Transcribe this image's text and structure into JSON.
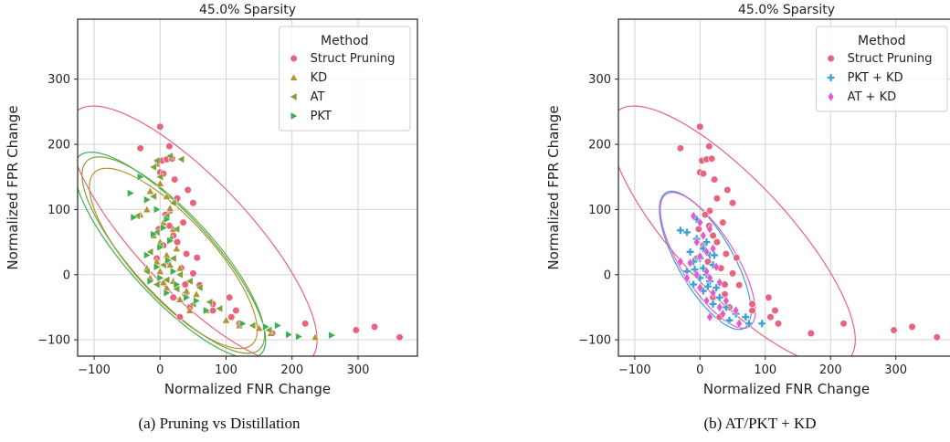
{
  "chart_data": [
    {
      "type": "scatter",
      "title": "45.0% Sparsity",
      "xlabel": "Normalized FNR Change",
      "ylabel": "Normalized FPR Change",
      "xlim": [
        -125,
        390
      ],
      "ylim": [
        -125,
        392
      ],
      "xticks": [
        -100,
        0,
        100,
        200,
        300
      ],
      "yticks": [
        -100,
        0,
        100,
        200,
        300
      ],
      "grid": true,
      "legend_title": "Method",
      "legend_position": "top-right",
      "caption": "(a) Pruning vs Distillation",
      "series": [
        {
          "name": "Struct Pruning",
          "marker": "circle",
          "color": "#e8647c",
          "ellipse": {
            "cx": 50,
            "cy": 60,
            "rx": 260,
            "ry": 85,
            "angle": -47
          },
          "points": [
            [
              0,
              227
            ],
            [
              -30,
              194
            ],
            [
              14,
              197
            ],
            [
              3,
              175
            ],
            [
              10,
              177
            ],
            [
              18,
              178
            ],
            [
              0,
              157
            ],
            [
              5,
              155
            ],
            [
              22,
              146
            ],
            [
              42,
              130
            ],
            [
              26,
              117
            ],
            [
              50,
              110
            ],
            [
              15,
              98
            ],
            [
              8,
              92
            ],
            [
              35,
              80
            ],
            [
              14,
              75
            ],
            [
              -2,
              70
            ],
            [
              20,
              60
            ],
            [
              26,
              50
            ],
            [
              40,
              32
            ],
            [
              56,
              26
            ],
            [
              12,
              20
            ],
            [
              32,
              10
            ],
            [
              50,
              2
            ],
            [
              -5,
              25
            ],
            [
              5,
              45
            ],
            [
              38,
              -15
            ],
            [
              60,
              -16
            ],
            [
              20,
              -35
            ],
            [
              38,
              -30
            ],
            [
              80,
              -45
            ],
            [
              105,
              -35
            ],
            [
              80,
              -55
            ],
            [
              115,
              -55
            ],
            [
              120,
              -75
            ],
            [
              108,
              -65
            ],
            [
              170,
              -90
            ],
            [
              220,
              -75
            ],
            [
              297,
              -85
            ],
            [
              325,
              -80
            ],
            [
              363,
              -96
            ],
            [
              30,
              -65
            ],
            [
              45,
              -50
            ]
          ]
        },
        {
          "name": "KD",
          "marker": "triangle-up",
          "color": "#b59232",
          "ellipse": {
            "cx": 20,
            "cy": 25,
            "rx": 178,
            "ry": 60,
            "angle": -48
          },
          "points": [
            [
              -30,
              92
            ],
            [
              -20,
              100
            ],
            [
              -15,
              128
            ],
            [
              -5,
              170
            ],
            [
              0,
              140
            ],
            [
              10,
              120
            ],
            [
              15,
              102
            ],
            [
              5,
              80
            ],
            [
              20,
              70
            ],
            [
              -10,
              60
            ],
            [
              0,
              50
            ],
            [
              25,
              40
            ],
            [
              10,
              30
            ],
            [
              -5,
              20
            ],
            [
              15,
              15
            ],
            [
              30,
              10
            ],
            [
              0,
              5
            ],
            [
              -15,
              -5
            ],
            [
              20,
              -10
            ],
            [
              10,
              -20
            ],
            [
              40,
              -25
            ],
            [
              30,
              -38
            ],
            [
              55,
              -30
            ],
            [
              5,
              -12
            ],
            [
              -20,
              10
            ],
            [
              45,
              -55
            ],
            [
              70,
              -55
            ],
            [
              100,
              -70
            ],
            [
              120,
              -78
            ],
            [
              150,
              -82
            ],
            [
              168,
              -90
            ],
            [
              235,
              -96
            ]
          ]
        },
        {
          "name": "AT",
          "marker": "triangle-left",
          "color": "#7da13a",
          "ellipse": {
            "cx": 20,
            "cy": 30,
            "rx": 195,
            "ry": 62,
            "angle": -48
          },
          "points": [
            [
              -35,
              90
            ],
            [
              -10,
              165
            ],
            [
              -5,
              175
            ],
            [
              15,
              182
            ],
            [
              32,
              177
            ],
            [
              0,
              150
            ],
            [
              -10,
              120
            ],
            [
              20,
              110
            ],
            [
              10,
              90
            ],
            [
              25,
              70
            ],
            [
              -5,
              65
            ],
            [
              15,
              55
            ],
            [
              0,
              45
            ],
            [
              -15,
              35
            ],
            [
              20,
              25
            ],
            [
              5,
              15
            ],
            [
              -20,
              5
            ],
            [
              30,
              0
            ],
            [
              10,
              -8
            ],
            [
              -5,
              -15
            ],
            [
              25,
              -22
            ],
            [
              45,
              -10
            ],
            [
              50,
              -45
            ],
            [
              75,
              -42
            ],
            [
              90,
              -52
            ],
            [
              140,
              -78
            ],
            [
              165,
              -85
            ],
            [
              60,
              -20
            ]
          ]
        },
        {
          "name": "PKT",
          "marker": "triangle-right",
          "color": "#3cb050",
          "ellipse": {
            "cx": 15,
            "cy": 30,
            "rx": 205,
            "ry": 63,
            "angle": -48
          },
          "points": [
            [
              -40,
              88
            ],
            [
              -45,
              125
            ],
            [
              -30,
              150
            ],
            [
              -20,
              115
            ],
            [
              -5,
              100
            ],
            [
              10,
              85
            ],
            [
              5,
              72
            ],
            [
              -10,
              62
            ],
            [
              15,
              52
            ],
            [
              0,
              42
            ],
            [
              -20,
              30
            ],
            [
              12,
              22
            ],
            [
              -5,
              12
            ],
            [
              20,
              5
            ],
            [
              0,
              -5
            ],
            [
              -15,
              -10
            ],
            [
              25,
              -15
            ],
            [
              10,
              -28
            ],
            [
              40,
              -35
            ],
            [
              55,
              -40
            ],
            [
              70,
              -55
            ],
            [
              125,
              -75
            ],
            [
              160,
              -80
            ],
            [
              178,
              -78
            ],
            [
              195,
              -92
            ],
            [
              210,
              -95
            ],
            [
              260,
              -93
            ]
          ]
        }
      ]
    },
    {
      "type": "scatter",
      "title": "45.0% Sparsity",
      "xlabel": "Normalized FNR Change",
      "ylabel": "Normalized FPR Change",
      "xlim": [
        -125,
        390
      ],
      "ylim": [
        -125,
        392
      ],
      "xticks": [
        -100,
        0,
        100,
        200,
        300
      ],
      "yticks": [
        -100,
        0,
        100,
        200,
        300
      ],
      "grid": true,
      "legend_title": "Method",
      "legend_position": "top-right",
      "caption": "(b) AT/PKT + KD",
      "series": [
        {
          "name": "Struct Pruning",
          "marker": "circle",
          "color": "#e8647c",
          "ellipse": {
            "cx": 50,
            "cy": 60,
            "rx": 260,
            "ry": 85,
            "angle": -47
          },
          "points": [
            [
              0,
              227
            ],
            [
              -30,
              194
            ],
            [
              14,
              197
            ],
            [
              3,
              175
            ],
            [
              10,
              177
            ],
            [
              18,
              178
            ],
            [
              0,
              157
            ],
            [
              5,
              155
            ],
            [
              22,
              146
            ],
            [
              42,
              130
            ],
            [
              26,
              117
            ],
            [
              50,
              110
            ],
            [
              15,
              98
            ],
            [
              8,
              92
            ],
            [
              35,
              80
            ],
            [
              14,
              75
            ],
            [
              -2,
              70
            ],
            [
              20,
              60
            ],
            [
              26,
              50
            ],
            [
              40,
              32
            ],
            [
              56,
              26
            ],
            [
              12,
              20
            ],
            [
              32,
              10
            ],
            [
              50,
              2
            ],
            [
              -5,
              25
            ],
            [
              5,
              45
            ],
            [
              38,
              -15
            ],
            [
              60,
              -16
            ],
            [
              20,
              -35
            ],
            [
              38,
              -30
            ],
            [
              80,
              -45
            ],
            [
              105,
              -35
            ],
            [
              80,
              -55
            ],
            [
              115,
              -55
            ],
            [
              120,
              -75
            ],
            [
              108,
              -65
            ],
            [
              170,
              -90
            ],
            [
              220,
              -75
            ],
            [
              297,
              -85
            ],
            [
              325,
              -80
            ],
            [
              363,
              -96
            ],
            [
              30,
              -65
            ],
            [
              45,
              -50
            ]
          ]
        },
        {
          "name": "PKT + KD",
          "marker": "plus",
          "color": "#3d9fd8",
          "ellipse": {
            "cx": 8,
            "cy": 22,
            "rx": 120,
            "ry": 42,
            "angle": -60
          },
          "points": [
            [
              -30,
              68
            ],
            [
              -20,
              65
            ],
            [
              -5,
              55
            ],
            [
              10,
              50
            ],
            [
              5,
              40
            ],
            [
              -15,
              35
            ],
            [
              15,
              30
            ],
            [
              0,
              25
            ],
            [
              -10,
              20
            ],
            [
              20,
              15
            ],
            [
              5,
              10
            ],
            [
              -20,
              5
            ],
            [
              10,
              0
            ],
            [
              0,
              -5
            ],
            [
              15,
              -10
            ],
            [
              -10,
              -15
            ],
            [
              25,
              -20
            ],
            [
              5,
              -25
            ],
            [
              30,
              -35
            ],
            [
              20,
              -45
            ],
            [
              40,
              -50
            ],
            [
              55,
              -60
            ],
            [
              70,
              -65
            ],
            [
              75,
              -75
            ],
            [
              95,
              -75
            ],
            [
              45,
              -70
            ],
            [
              -5,
              85
            ],
            [
              12,
              -18
            ],
            [
              -8,
              8
            ],
            [
              22,
              30
            ]
          ]
        },
        {
          "name": "AT + KD",
          "marker": "diamond",
          "color": "#e25ad0",
          "ellipse": {
            "cx": 12,
            "cy": 22,
            "rx": 120,
            "ry": 42,
            "angle": -58
          },
          "points": [
            [
              -30,
              20
            ],
            [
              -10,
              90
            ],
            [
              0,
              80
            ],
            [
              15,
              70
            ],
            [
              5,
              60
            ],
            [
              -5,
              50
            ],
            [
              20,
              40
            ],
            [
              10,
              35
            ],
            [
              0,
              28
            ],
            [
              -15,
              18
            ],
            [
              25,
              12
            ],
            [
              10,
              5
            ],
            [
              -5,
              0
            ],
            [
              15,
              -5
            ],
            [
              30,
              -12
            ],
            [
              0,
              -20
            ],
            [
              20,
              -28
            ],
            [
              40,
              -40
            ],
            [
              10,
              -40
            ],
            [
              30,
              -50
            ],
            [
              15,
              -65
            ],
            [
              55,
              -55
            ],
            [
              60,
              -75
            ],
            [
              35,
              -60
            ],
            [
              -20,
              -5
            ]
          ]
        }
      ]
    }
  ]
}
